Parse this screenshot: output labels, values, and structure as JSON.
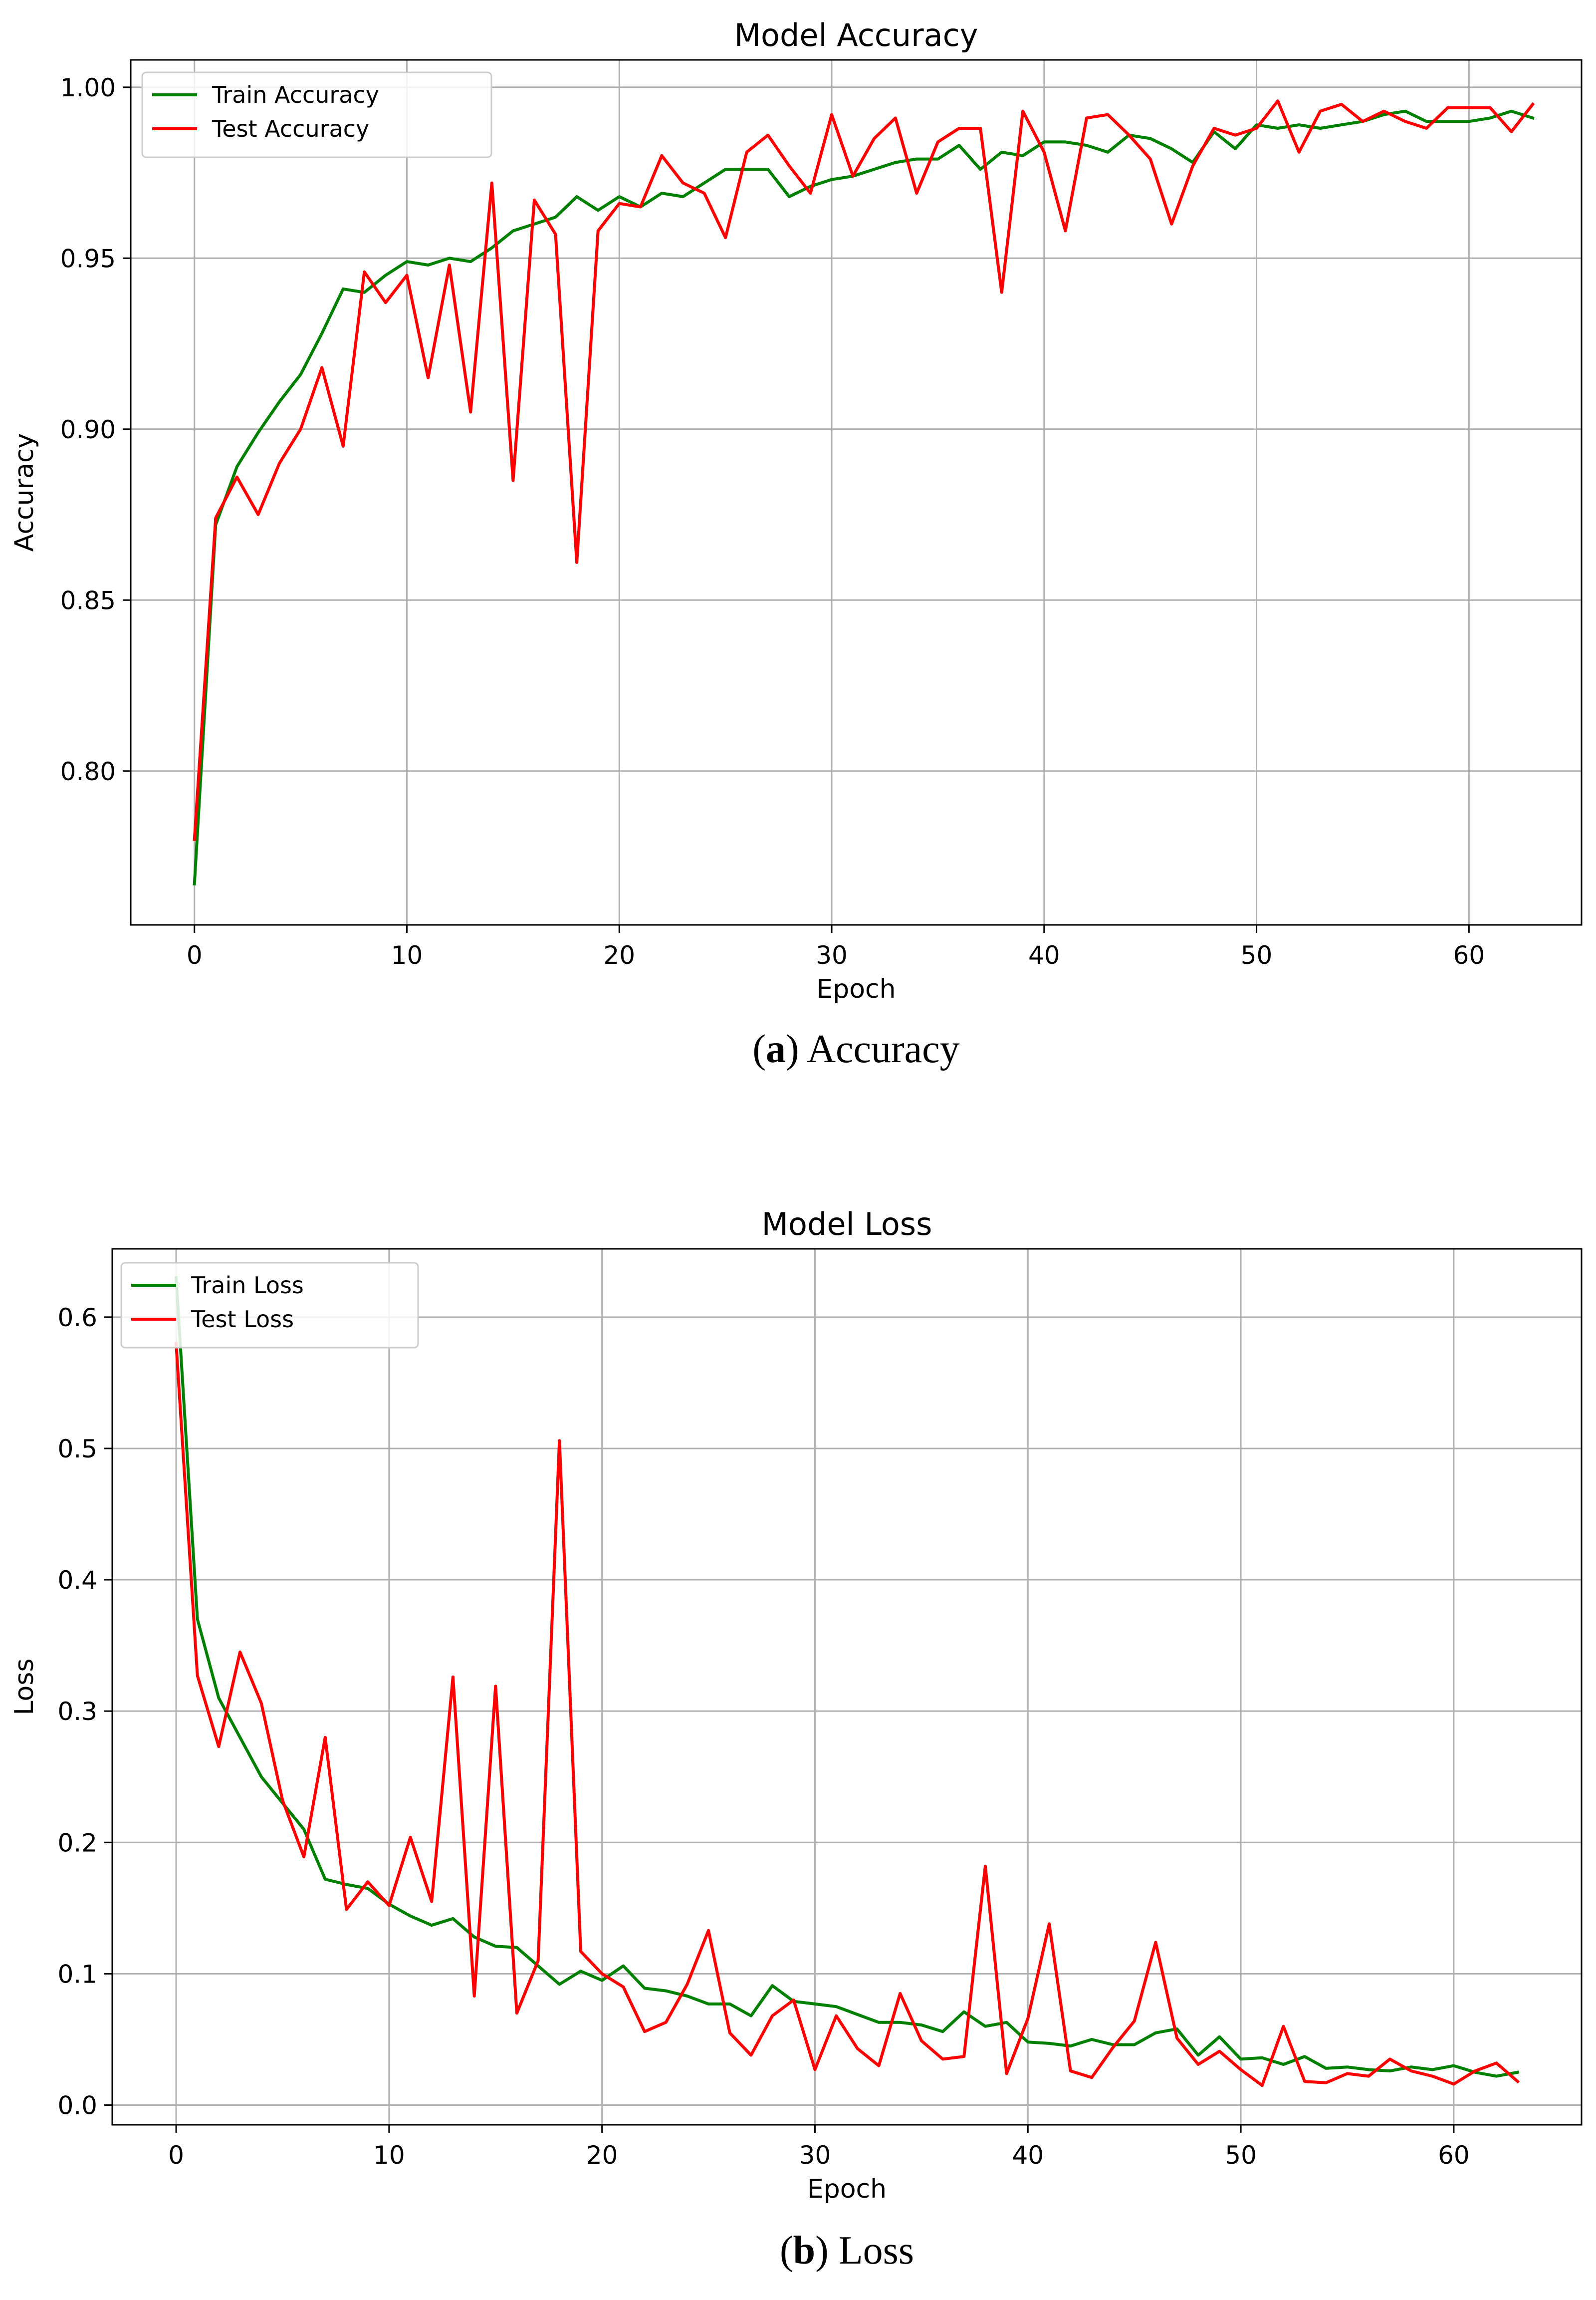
{
  "chart_data": [
    {
      "type": "line",
      "title": "Model Accuracy",
      "xlabel": "Epoch",
      "ylabel": "Accuracy",
      "xlim": [
        -3.0,
        65.3
      ],
      "ylim": [
        0.755,
        1.008
      ],
      "xticks": [
        0,
        10,
        20,
        30,
        40,
        50,
        60
      ],
      "xtick_labels": [
        "0",
        "10",
        "20",
        "30",
        "40",
        "50",
        "60"
      ],
      "yticks": [
        0.8,
        0.85,
        0.9,
        0.95,
        1.0
      ],
      "ytick_labels": [
        "0.80",
        "0.85",
        "0.90",
        "0.95",
        "1.00"
      ],
      "grid": true,
      "legend_position": "upper-left",
      "caption_label": "a",
      "caption_text": "Accuracy",
      "x": [
        0,
        1,
        2,
        3,
        4,
        5,
        6,
        7,
        8,
        9,
        10,
        11,
        12,
        13,
        14,
        15,
        16,
        17,
        18,
        19,
        20,
        21,
        22,
        23,
        24,
        25,
        26,
        27,
        28,
        29,
        30,
        31,
        32,
        33,
        34,
        35,
        36,
        37,
        38,
        39,
        40,
        41,
        42,
        43,
        44,
        45,
        46,
        47,
        48,
        49,
        50,
        51,
        52,
        53,
        54,
        55,
        56,
        57,
        58,
        59,
        60,
        61,
        62,
        63
      ],
      "series": [
        {
          "name": "Train Accuracy",
          "color": "#008000",
          "values": [
            0.767,
            0.872,
            0.889,
            0.899,
            0.908,
            0.916,
            0.928,
            0.941,
            0.94,
            0.945,
            0.949,
            0.948,
            0.95,
            0.949,
            0.953,
            0.958,
            0.96,
            0.962,
            0.968,
            0.964,
            0.968,
            0.965,
            0.969,
            0.968,
            0.972,
            0.976,
            0.976,
            0.976,
            0.968,
            0.971,
            0.973,
            0.974,
            0.976,
            0.978,
            0.979,
            0.979,
            0.983,
            0.976,
            0.981,
            0.98,
            0.984,
            0.984,
            0.983,
            0.981,
            0.986,
            0.985,
            0.982,
            0.978,
            0.987,
            0.982,
            0.989,
            0.988,
            0.989,
            0.988,
            0.989,
            0.99,
            0.992,
            0.993,
            0.99,
            0.99,
            0.99,
            0.991,
            0.993,
            0.991
          ]
        },
        {
          "name": "Test Accuracy",
          "color": "#ff0000",
          "values": [
            0.78,
            0.874,
            0.886,
            0.875,
            0.89,
            0.9,
            0.918,
            0.895,
            0.946,
            0.937,
            0.945,
            0.915,
            0.948,
            0.905,
            0.972,
            0.885,
            0.967,
            0.957,
            0.861,
            0.958,
            0.966,
            0.965,
            0.98,
            0.972,
            0.969,
            0.956,
            0.981,
            0.986,
            0.977,
            0.969,
            0.992,
            0.974,
            0.985,
            0.991,
            0.969,
            0.984,
            0.988,
            0.988,
            0.94,
            0.993,
            0.981,
            0.958,
            0.991,
            0.992,
            0.986,
            0.979,
            0.96,
            0.977,
            0.988,
            0.986,
            0.988,
            0.996,
            0.981,
            0.993,
            0.995,
            0.99,
            0.993,
            0.99,
            0.988,
            0.994,
            0.994,
            0.994,
            0.987,
            0.995
          ]
        }
      ]
    },
    {
      "type": "line",
      "title": "Model Loss",
      "xlabel": "Epoch",
      "ylabel": "Loss",
      "xlim": [
        -3.0,
        66.0
      ],
      "ylim": [
        -0.015,
        0.652
      ],
      "xticks": [
        0,
        10,
        20,
        30,
        40,
        50,
        60
      ],
      "xtick_labels": [
        "0",
        "10",
        "20",
        "30",
        "40",
        "50",
        "60"
      ],
      "yticks": [
        0.0,
        0.1,
        0.2,
        0.3,
        0.4,
        0.5,
        0.6
      ],
      "ytick_labels": [
        "0.0",
        "0.1",
        "0.2",
        "0.3",
        "0.4",
        "0.5",
        "0.6"
      ],
      "grid": true,
      "legend_position": "upper-left",
      "caption_label": "b",
      "caption_text": "Loss",
      "x": [
        0,
        1,
        2,
        3,
        4,
        5,
        6,
        7,
        8,
        9,
        10,
        11,
        12,
        13,
        14,
        15,
        16,
        17,
        18,
        19,
        20,
        21,
        22,
        23,
        24,
        25,
        26,
        27,
        28,
        29,
        30,
        31,
        32,
        33,
        34,
        35,
        36,
        37,
        38,
        39,
        40,
        41,
        42,
        43,
        44,
        45,
        46,
        47,
        48,
        49,
        50,
        51,
        52,
        53,
        54,
        55,
        56,
        57,
        58,
        59,
        60,
        61,
        62,
        63
      ],
      "series": [
        {
          "name": "Train Loss",
          "color": "#008000",
          "values": [
            0.63,
            0.37,
            0.31,
            0.28,
            0.25,
            0.23,
            0.21,
            0.172,
            0.168,
            0.165,
            0.153,
            0.144,
            0.137,
            0.142,
            0.128,
            0.121,
            0.12,
            0.106,
            0.092,
            0.102,
            0.095,
            0.106,
            0.089,
            0.087,
            0.083,
            0.077,
            0.077,
            0.068,
            0.091,
            0.079,
            0.077,
            0.075,
            0.069,
            0.063,
            0.063,
            0.061,
            0.056,
            0.071,
            0.06,
            0.063,
            0.048,
            0.047,
            0.045,
            0.05,
            0.046,
            0.046,
            0.055,
            0.058,
            0.038,
            0.052,
            0.035,
            0.036,
            0.031,
            0.037,
            0.028,
            0.029,
            0.027,
            0.026,
            0.029,
            0.027,
            0.03,
            0.025,
            0.022,
            0.025
          ]
        },
        {
          "name": "Test Loss",
          "color": "#ff0000",
          "values": [
            0.58,
            0.327,
            0.273,
            0.345,
            0.306,
            0.232,
            0.189,
            0.28,
            0.149,
            0.17,
            0.152,
            0.204,
            0.155,
            0.326,
            0.083,
            0.319,
            0.07,
            0.11,
            0.506,
            0.117,
            0.1,
            0.09,
            0.056,
            0.063,
            0.092,
            0.133,
            0.055,
            0.038,
            0.068,
            0.08,
            0.027,
            0.068,
            0.043,
            0.03,
            0.085,
            0.049,
            0.035,
            0.037,
            0.182,
            0.024,
            0.066,
            0.138,
            0.026,
            0.021,
            0.044,
            0.064,
            0.124,
            0.051,
            0.031,
            0.041,
            0.027,
            0.015,
            0.06,
            0.018,
            0.017,
            0.024,
            0.022,
            0.035,
            0.026,
            0.022,
            0.016,
            0.026,
            0.032,
            0.018
          ]
        }
      ]
    }
  ]
}
